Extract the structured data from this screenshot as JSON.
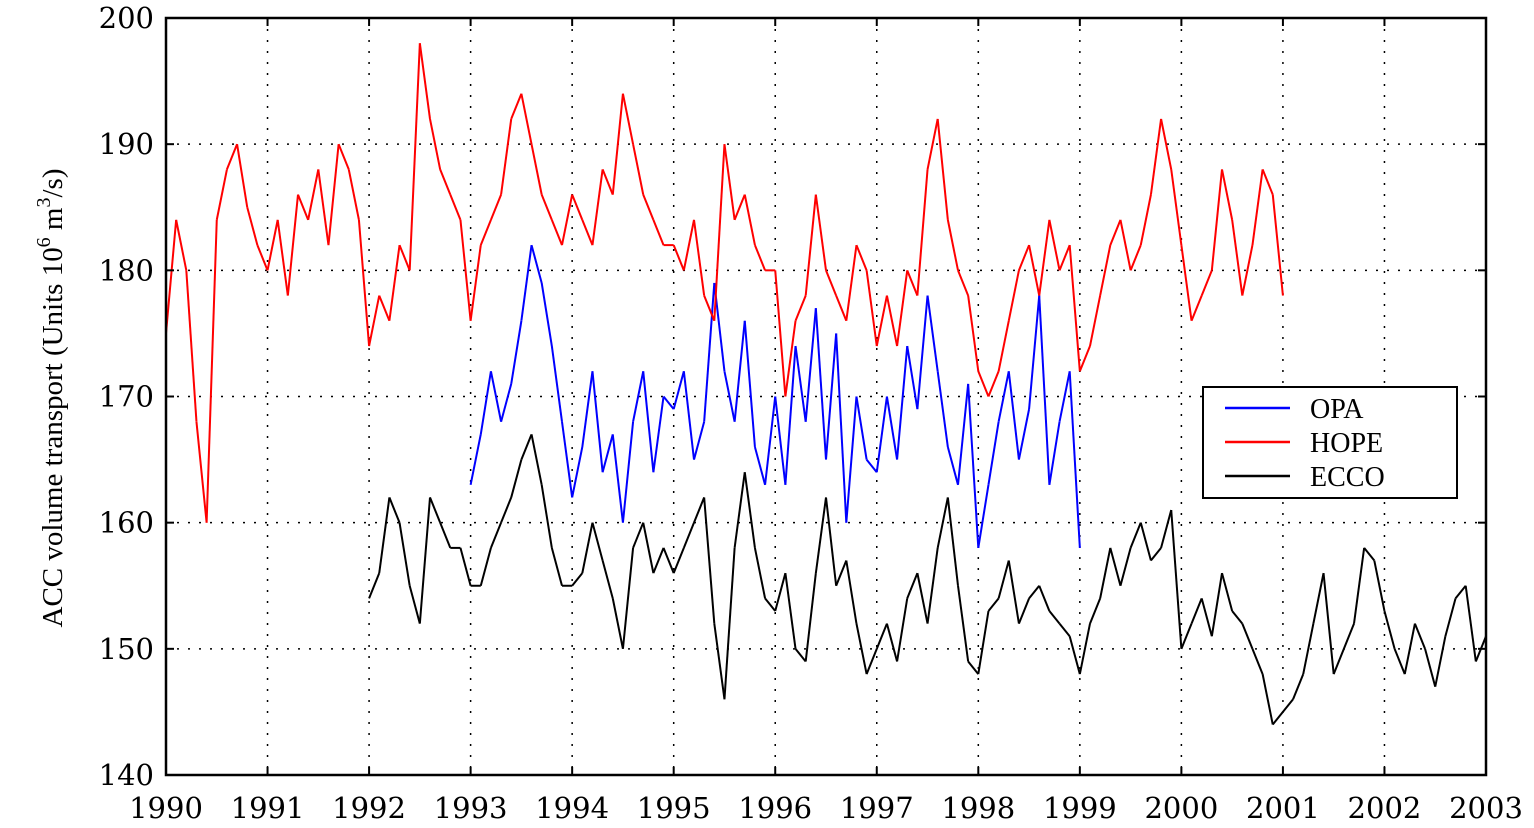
{
  "chart_data": {
    "type": "line",
    "xlim": [
      1990,
      2003
    ],
    "ylim": [
      140,
      200
    ],
    "x_ticks": [
      "1990",
      "1991",
      "1992",
      "1993",
      "1994",
      "1995",
      "1996",
      "1997",
      "1998",
      "1999",
      "2000",
      "2001",
      "2002",
      "2003"
    ],
    "y_ticks": [
      "140",
      "150",
      "160",
      "170",
      "180",
      "190",
      "200"
    ],
    "ylabel": "ACC volume transport (Units 10",
    "ylabel_sup1": "6",
    "ylabel_mid": " m",
    "ylabel_sup2": "3",
    "ylabel_end": "/s)",
    "grid": true,
    "grid_style": "dotted",
    "legend_position": "right",
    "series": [
      {
        "name": "OPA",
        "color": "#0000ff",
        "x": [
          1993.0,
          1993.1,
          1993.2,
          1993.3,
          1993.4,
          1993.5,
          1993.6,
          1993.7,
          1993.8,
          1993.9,
          1994.0,
          1994.1,
          1994.2,
          1994.3,
          1994.4,
          1994.5,
          1994.6,
          1994.7,
          1994.8,
          1994.9,
          1995.0,
          1995.1,
          1995.2,
          1995.3,
          1995.4,
          1995.5,
          1995.6,
          1995.7,
          1995.8,
          1995.9,
          1996.0,
          1996.1,
          1996.2,
          1996.3,
          1996.4,
          1996.5,
          1996.6,
          1996.7,
          1996.8,
          1996.9,
          1997.0,
          1997.1,
          1997.2,
          1997.3,
          1997.4,
          1997.5,
          1997.6,
          1997.7,
          1997.8,
          1997.9,
          1998.0,
          1998.1,
          1998.2,
          1998.3,
          1998.4,
          1998.5,
          1998.6,
          1998.7,
          1998.8,
          1998.9,
          1999.0
        ],
        "values": [
          163,
          167,
          172,
          168,
          171,
          176,
          182,
          179,
          174,
          168,
          162,
          166,
          172,
          164,
          167,
          160,
          168,
          172,
          164,
          170,
          169,
          172,
          165,
          168,
          179,
          172,
          168,
          176,
          166,
          163,
          170,
          163,
          174,
          168,
          177,
          165,
          175,
          160,
          170,
          165,
          164,
          170,
          165,
          174,
          169,
          178,
          172,
          166,
          163,
          171,
          158,
          163,
          168,
          172,
          165,
          169,
          178,
          163,
          168,
          172,
          158
        ]
      },
      {
        "name": "HOPE",
        "color": "#ff0000",
        "x": [
          1990.0,
          1990.1,
          1990.2,
          1990.3,
          1990.4,
          1990.5,
          1990.6,
          1990.7,
          1990.8,
          1990.9,
          1991.0,
          1991.1,
          1991.2,
          1991.3,
          1991.4,
          1991.5,
          1991.6,
          1991.7,
          1991.8,
          1991.9,
          1992.0,
          1992.1,
          1992.2,
          1992.3,
          1992.4,
          1992.5,
          1992.6,
          1992.7,
          1992.8,
          1992.9,
          1993.0,
          1993.1,
          1993.2,
          1993.3,
          1993.4,
          1993.5,
          1993.6,
          1993.7,
          1993.8,
          1993.9,
          1994.0,
          1994.1,
          1994.2,
          1994.3,
          1994.4,
          1994.5,
          1994.6,
          1994.7,
          1994.8,
          1994.9,
          1995.0,
          1995.1,
          1995.2,
          1995.3,
          1995.4,
          1995.5,
          1995.6,
          1995.7,
          1995.8,
          1995.9,
          1996.0,
          1996.1,
          1996.2,
          1996.3,
          1996.4,
          1996.5,
          1996.6,
          1996.7,
          1996.8,
          1996.9,
          1997.0,
          1997.1,
          1997.2,
          1997.3,
          1997.4,
          1997.5,
          1997.6,
          1997.7,
          1997.8,
          1997.9,
          1998.0,
          1998.1,
          1998.2,
          1998.3,
          1998.4,
          1998.5,
          1998.6,
          1998.7,
          1998.8,
          1998.9,
          1999.0,
          1999.1,
          1999.2,
          1999.3,
          1999.4,
          1999.5,
          1999.6,
          1999.7,
          1999.8,
          1999.9,
          2000.0,
          2000.1,
          2000.2,
          2000.3,
          2000.4,
          2000.5,
          2000.6,
          2000.7,
          2000.8,
          2000.9,
          2001.0
        ],
        "values": [
          175,
          184,
          180,
          168,
          160,
          184,
          188,
          190,
          185,
          182,
          180,
          184,
          178,
          186,
          184,
          188,
          182,
          190,
          188,
          184,
          174,
          178,
          176,
          182,
          180,
          198,
          192,
          188,
          186,
          184,
          176,
          182,
          184,
          186,
          192,
          194,
          190,
          186,
          184,
          182,
          186,
          184,
          182,
          188,
          186,
          194,
          190,
          186,
          184,
          182,
          182,
          180,
          184,
          178,
          176,
          190,
          184,
          186,
          182,
          180,
          180,
          170,
          176,
          178,
          186,
          180,
          178,
          176,
          182,
          180,
          174,
          178,
          174,
          180,
          178,
          188,
          192,
          184,
          180,
          178,
          172,
          170,
          172,
          176,
          180,
          182,
          178,
          184,
          180,
          182,
          172,
          174,
          178,
          182,
          184,
          180,
          182,
          186,
          192,
          188,
          182,
          176,
          178,
          180,
          188,
          184,
          178,
          182,
          188,
          186,
          178
        ]
      },
      {
        "name": "ECCO",
        "color": "#000000",
        "x": [
          1992.0,
          1992.1,
          1992.2,
          1992.3,
          1992.4,
          1992.5,
          1992.6,
          1992.7,
          1992.8,
          1992.9,
          1993.0,
          1993.1,
          1993.2,
          1993.3,
          1993.4,
          1993.5,
          1993.6,
          1993.7,
          1993.8,
          1993.9,
          1994.0,
          1994.1,
          1994.2,
          1994.3,
          1994.4,
          1994.5,
          1994.6,
          1994.7,
          1994.8,
          1994.9,
          1995.0,
          1995.1,
          1995.2,
          1995.3,
          1995.4,
          1995.5,
          1995.6,
          1995.7,
          1995.8,
          1995.9,
          1996.0,
          1996.1,
          1996.2,
          1996.3,
          1996.4,
          1996.5,
          1996.6,
          1996.7,
          1996.8,
          1996.9,
          1997.0,
          1997.1,
          1997.2,
          1997.3,
          1997.4,
          1997.5,
          1997.6,
          1997.7,
          1997.8,
          1997.9,
          1998.0,
          1998.1,
          1998.2,
          1998.3,
          1998.4,
          1998.5,
          1998.6,
          1998.7,
          1998.8,
          1998.9,
          1999.0,
          1999.1,
          1999.2,
          1999.3,
          1999.4,
          1999.5,
          1999.6,
          1999.7,
          1999.8,
          1999.9,
          2000.0,
          2000.1,
          2000.2,
          2000.3,
          2000.4,
          2000.5,
          2000.6,
          2000.7,
          2000.8,
          2000.9,
          2001.0,
          2001.1,
          2001.2,
          2001.3,
          2001.4,
          2001.5,
          2001.6,
          2001.7,
          2001.8,
          2001.9,
          2002.0,
          2002.1,
          2002.2,
          2002.3,
          2002.4,
          2002.5,
          2002.6,
          2002.7,
          2002.8,
          2002.9,
          2003.0
        ],
        "values": [
          154,
          156,
          162,
          160,
          155,
          152,
          162,
          160,
          158,
          158,
          155,
          155,
          158,
          160,
          162,
          165,
          167,
          163,
          158,
          155,
          155,
          156,
          160,
          157,
          154,
          150,
          158,
          160,
          156,
          158,
          156,
          158,
          160,
          162,
          152,
          146,
          158,
          164,
          158,
          154,
          153,
          156,
          150,
          149,
          156,
          162,
          155,
          157,
          152,
          148,
          150,
          152,
          149,
          154,
          156,
          152,
          158,
          162,
          155,
          149,
          148,
          153,
          154,
          157,
          152,
          154,
          155,
          153,
          152,
          151,
          148,
          152,
          154,
          158,
          155,
          158,
          160,
          157,
          158,
          161,
          150,
          152,
          154,
          151,
          156,
          153,
          152,
          150,
          148,
          144,
          145,
          146,
          148,
          152,
          156,
          148,
          150,
          152,
          158,
          157,
          153,
          150,
          148,
          152,
          150,
          147,
          151,
          154,
          155,
          149,
          151
        ]
      }
    ]
  }
}
